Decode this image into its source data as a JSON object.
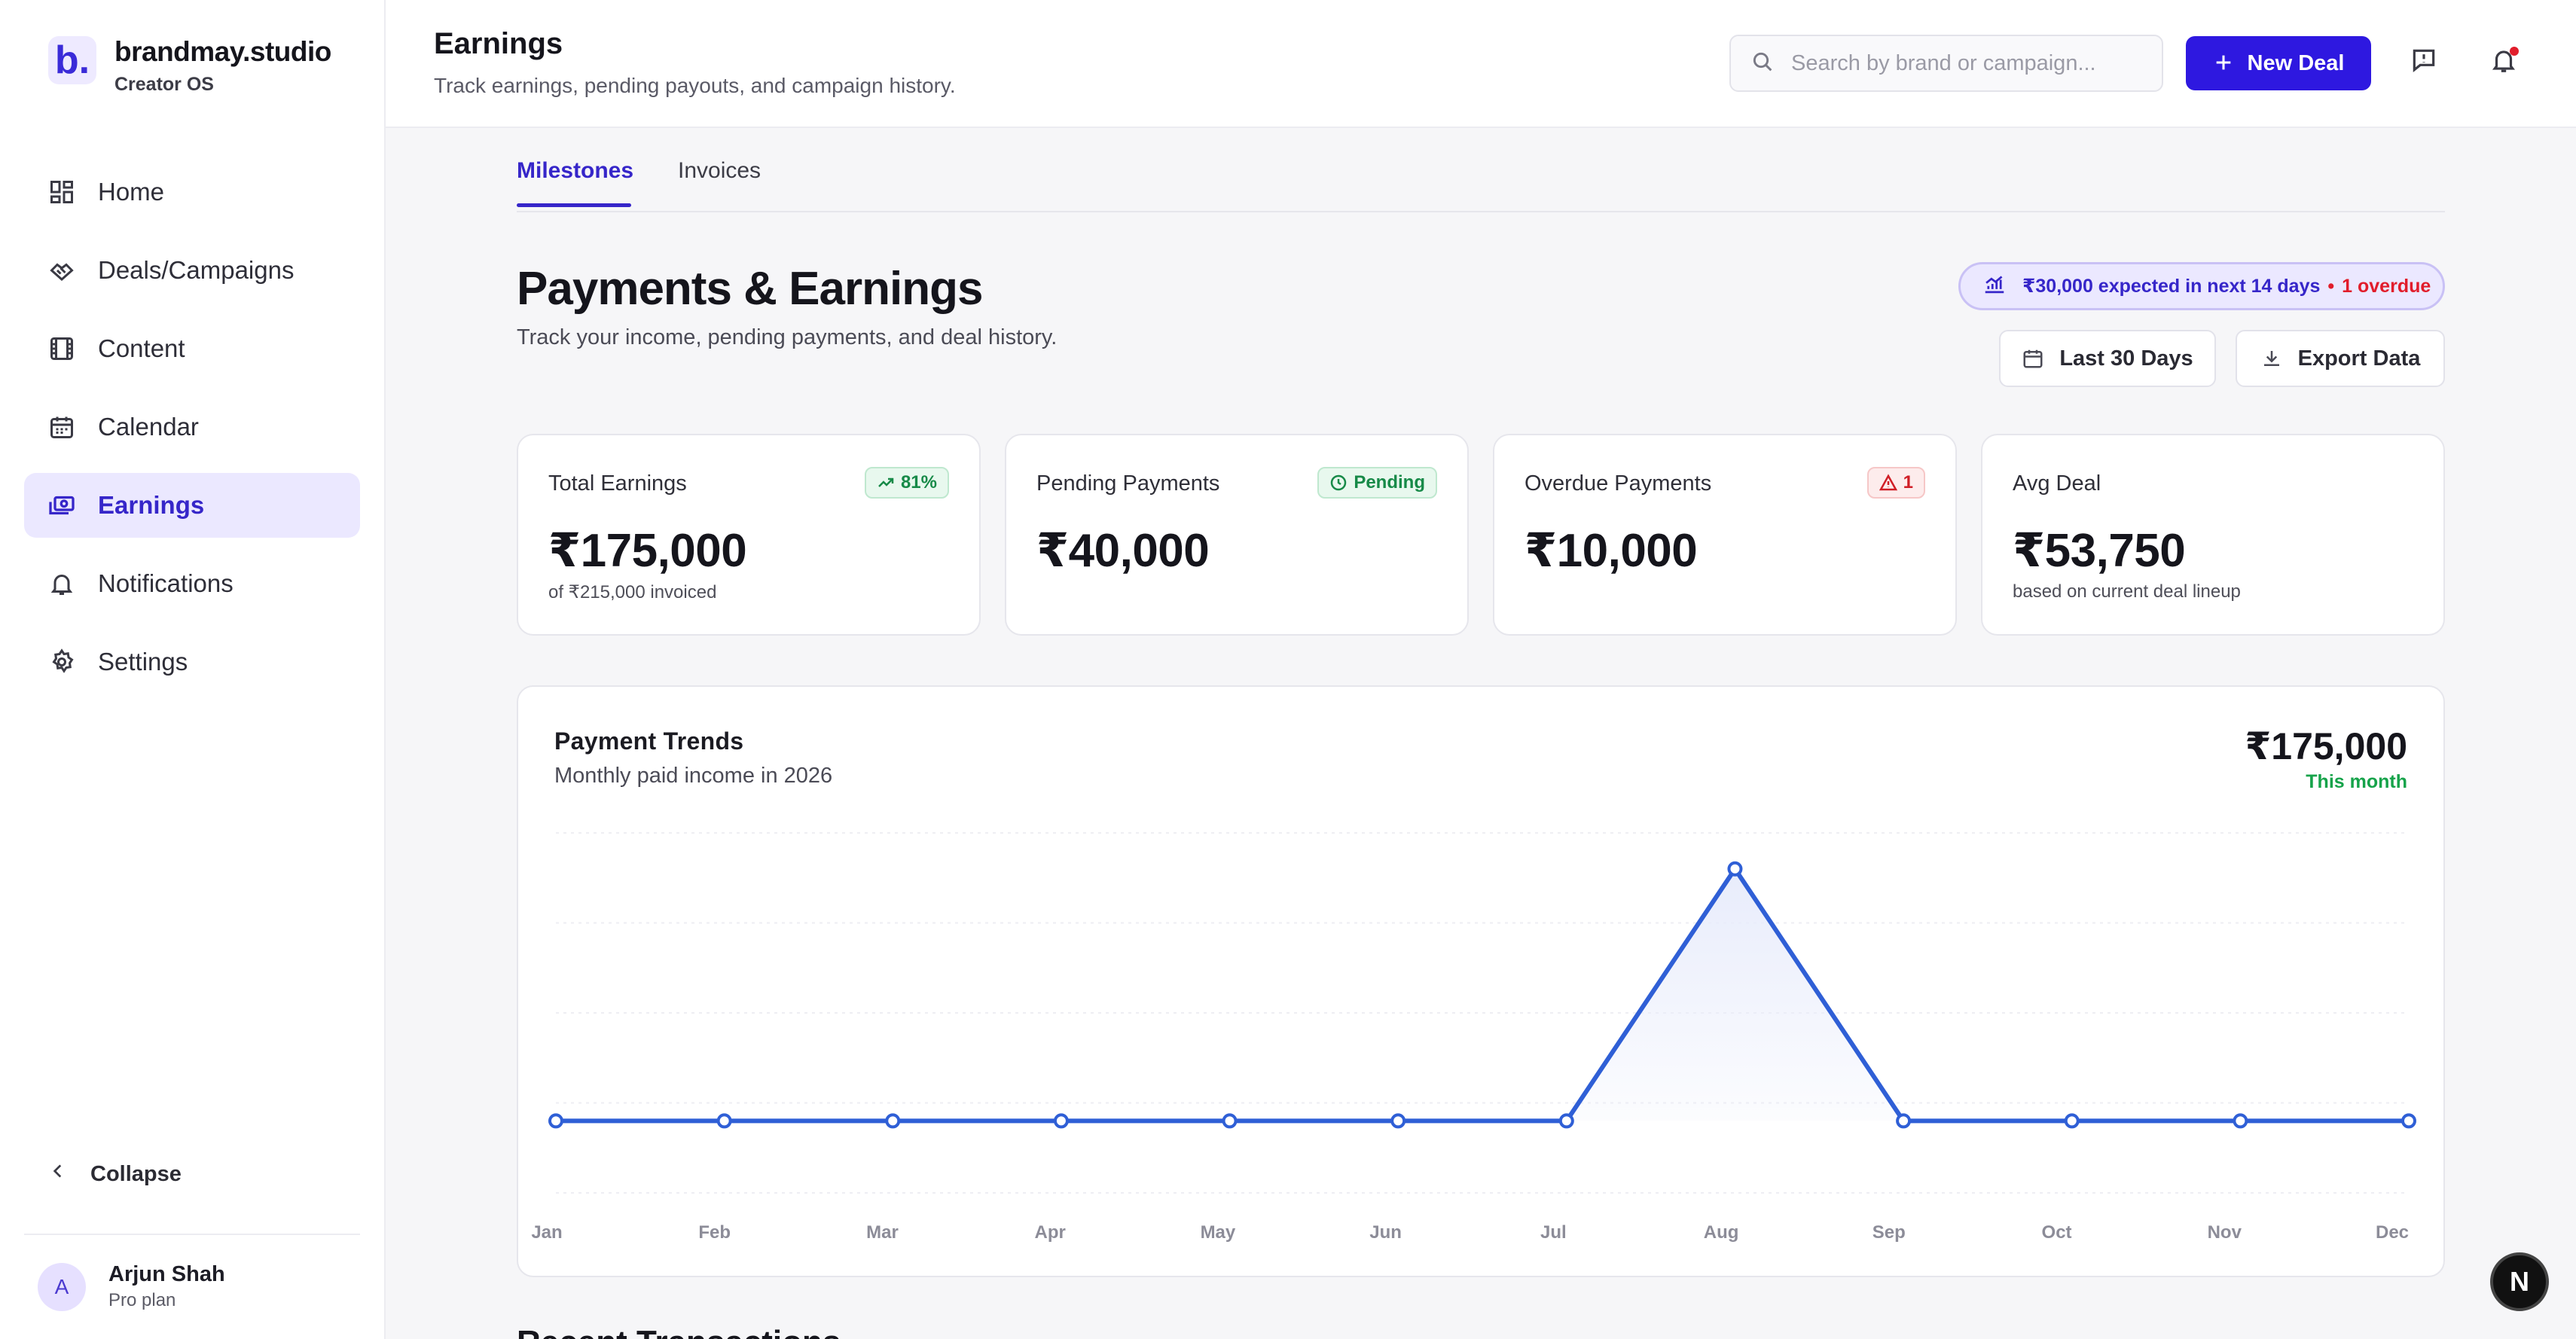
{
  "brand": {
    "logo": "b.",
    "name": "brandmay.studio",
    "subtitle": "Creator OS"
  },
  "sidebar": {
    "items": [
      {
        "label": "Home",
        "icon": "grid-icon",
        "active": false
      },
      {
        "label": "Deals/Campaigns",
        "icon": "handshake-icon",
        "active": false
      },
      {
        "label": "Content",
        "icon": "film-icon",
        "active": false
      },
      {
        "label": "Calendar",
        "icon": "calendar-icon",
        "active": false
      },
      {
        "label": "Earnings",
        "icon": "cash-icon",
        "active": true
      },
      {
        "label": "Notifications",
        "icon": "bell-icon",
        "active": false
      },
      {
        "label": "Settings",
        "icon": "gear-icon",
        "active": false
      }
    ],
    "collapse_label": "Collapse",
    "user": {
      "initial": "A",
      "name": "Arjun Shah",
      "plan": "Pro plan"
    }
  },
  "header": {
    "title": "Earnings",
    "subtitle": "Track earnings, pending payouts, and campaign history.",
    "search_placeholder": "Search by brand or campaign...",
    "new_deal_label": "New Deal"
  },
  "tabs": [
    {
      "label": "Milestones",
      "active": true
    },
    {
      "label": "Invoices",
      "active": false
    }
  ],
  "page": {
    "title": "Payments & Earnings",
    "subtitle": "Track your income, pending payments, and deal history.",
    "expected_text": "₹30,000 expected in next 14 days",
    "expected_dot": "•",
    "overdue_text": "1 overdue",
    "range_button": "Last 30 Days",
    "export_button": "Export Data"
  },
  "stats": [
    {
      "label": "Total Earnings",
      "value": "₹175,000",
      "note": "of ₹215,000 invoiced",
      "badge": "81%",
      "badge_icon": "trend-up-icon"
    },
    {
      "label": "Pending Payments",
      "value": "₹40,000",
      "note": "",
      "badge": "Pending",
      "badge_icon": "clock-icon"
    },
    {
      "label": "Overdue Payments",
      "value": "₹10,000",
      "note": "",
      "badge": "1",
      "badge_icon": "alert-triangle-icon"
    },
    {
      "label": "Avg Deal",
      "value": "₹53,750",
      "note": "based on current deal lineup",
      "badge": "",
      "badge_icon": ""
    }
  ],
  "chart": {
    "title": "Payment Trends",
    "subtitle": "Monthly paid income in 2026",
    "total": "₹175,000",
    "total_note": "This month"
  },
  "chart_data": {
    "type": "area",
    "categories": [
      "Jan",
      "Feb",
      "Mar",
      "Apr",
      "May",
      "Jun",
      "Jul",
      "Aug",
      "Sep",
      "Oct",
      "Nov",
      "Dec"
    ],
    "series": [
      {
        "values": [
          0,
          0,
          0,
          0,
          0,
          0,
          0,
          175000,
          0,
          0,
          0,
          0
        ]
      }
    ],
    "ylim": [
      -50000,
      200000
    ],
    "grid": true,
    "colors": {
      "line": "#2f5fd6",
      "fill": "#e8ecfb"
    }
  },
  "recent_heading": "Recent Transactions",
  "dev_badge": "N"
}
